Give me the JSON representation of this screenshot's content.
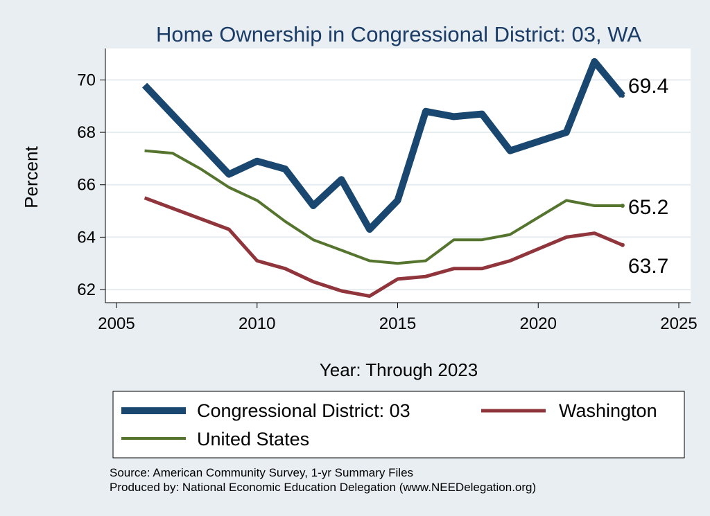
{
  "chart_data": {
    "type": "line",
    "title": "Home Ownership in Congressional District:  03, WA",
    "xlabel": "Year: Through 2023",
    "ylabel": "Percent",
    "xlim": [
      2005,
      2025
    ],
    "ylim": [
      61.5,
      71.2
    ],
    "x_ticks": [
      2005,
      2010,
      2015,
      2020,
      2025
    ],
    "y_ticks": [
      62,
      64,
      66,
      68,
      70
    ],
    "x_tick_labels": [
      "2005",
      "2010",
      "2015",
      "2020",
      "2025"
    ],
    "y_tick_labels": [
      "62",
      "64",
      "66",
      "68",
      "70"
    ],
    "grid": true,
    "legend_position": "bottom",
    "series": [
      {
        "name": "Congressional District:  03",
        "color": "#1a476f",
        "end_label": "69.4",
        "points": [
          [
            2006,
            69.8
          ],
          [
            2009,
            66.4
          ],
          [
            2010,
            66.9
          ],
          [
            2011,
            66.6
          ],
          [
            2012,
            65.2
          ],
          [
            2013,
            66.2
          ],
          [
            2014,
            64.3
          ],
          [
            2015,
            65.4
          ],
          [
            2016,
            68.8
          ],
          [
            2017,
            68.6
          ],
          [
            2018,
            68.7
          ],
          [
            2019,
            67.3
          ],
          [
            2021,
            68.0
          ],
          [
            2022,
            70.7
          ],
          [
            2023,
            69.4
          ]
        ]
      },
      {
        "name": "Washington",
        "color": "#90353b",
        "end_label": "63.7",
        "points": [
          [
            2006,
            65.5
          ],
          [
            2009,
            64.3
          ],
          [
            2010,
            63.1
          ],
          [
            2011,
            62.8
          ],
          [
            2012,
            62.3
          ],
          [
            2013,
            61.95
          ],
          [
            2014,
            61.75
          ],
          [
            2015,
            62.4
          ],
          [
            2016,
            62.5
          ],
          [
            2017,
            62.8
          ],
          [
            2018,
            62.8
          ],
          [
            2019,
            63.1
          ],
          [
            2021,
            64.0
          ],
          [
            2022,
            64.15
          ],
          [
            2023,
            63.7
          ]
        ]
      },
      {
        "name": "United States",
        "color": "#55752f",
        "end_label": "65.2",
        "points": [
          [
            2006,
            67.3
          ],
          [
            2007,
            67.2
          ],
          [
            2008,
            66.6
          ],
          [
            2009,
            65.9
          ],
          [
            2010,
            65.4
          ],
          [
            2011,
            64.6
          ],
          [
            2012,
            63.9
          ],
          [
            2013,
            63.5
          ],
          [
            2014,
            63.1
          ],
          [
            2015,
            63.0
          ],
          [
            2016,
            63.1
          ],
          [
            2017,
            63.9
          ],
          [
            2018,
            63.9
          ],
          [
            2019,
            64.1
          ],
          [
            2021,
            65.4
          ],
          [
            2022,
            65.2
          ],
          [
            2023,
            65.2
          ]
        ]
      }
    ],
    "notes": [
      "Source: American Community Survey, 1-yr Summary Files",
      "Produced by: National Economic Education Delegation (www.NEEDelegation.org)"
    ]
  }
}
